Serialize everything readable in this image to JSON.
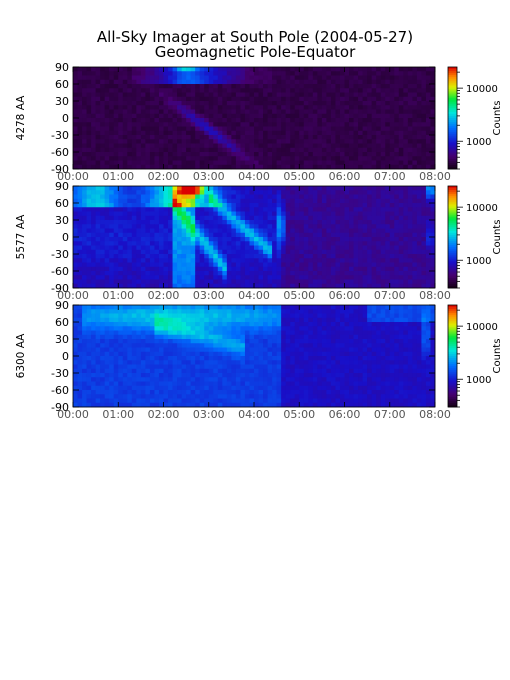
{
  "chart_data": {
    "type": "heatmap",
    "title": "All-Sky Imager at South Pole (2004-05-27)",
    "subtitle": "Geomagnetic Pole-Equator",
    "x_tick_labels": [
      "00:00",
      "01:00",
      "02:00",
      "03:00",
      "04:00",
      "05:00",
      "06:00",
      "07:00",
      "08:00"
    ],
    "x_range_hours": [
      0,
      8
    ],
    "y_tick_labels": [
      "90",
      "60",
      "30",
      "0",
      "-30",
      "-60",
      "-90"
    ],
    "y_range": [
      -90,
      90
    ],
    "colorbar": {
      "label": "Counts",
      "tick_labels": [
        "10000",
        "1000"
      ],
      "scale": "log",
      "colormap": "rainbow (black-purple-blue-cyan-green-yellow-red)"
    },
    "panels": [
      {
        "label": "4278 AA",
        "background": "#1c0828",
        "note": "mostly dark; faint structures near 60-90 between 01:30 and 04:30",
        "colorbar_tick_values": [
          10000,
          1000
        ]
      },
      {
        "label": "5577 AA",
        "background": "#3a1480",
        "note": "intense emission (red/yellow) near 60-90 between 02:00 and 03:30; bright columns 02:00-03:20",
        "colorbar_tick_values": [
          10000,
          1000
        ]
      },
      {
        "label": "6300 AA",
        "background": "#2c1a8a",
        "note": "broad blue/cyan emission 30-90 between 00:15 and 04:30",
        "colorbar_tick_values": [
          10000,
          1000
        ]
      }
    ]
  }
}
